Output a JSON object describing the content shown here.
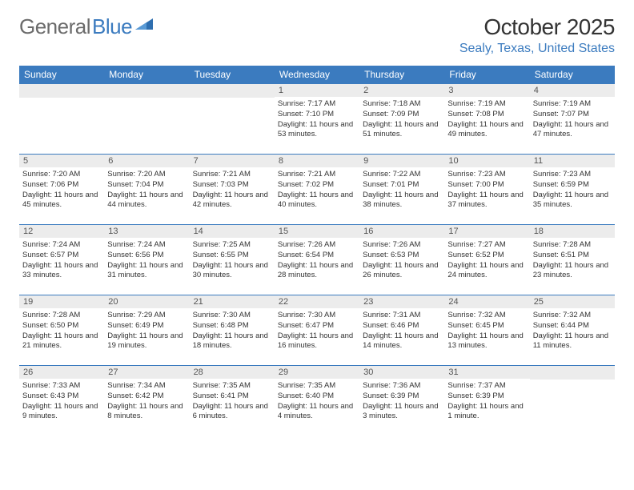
{
  "logo": {
    "text1": "General",
    "text2": "Blue"
  },
  "title": "October 2025",
  "location": "Sealy, Texas, United States",
  "colors": {
    "header_blue": "#3b7bbf",
    "row_gray": "#ececec",
    "text": "#333333",
    "logo_gray": "#6b6b6b"
  },
  "day_names": [
    "Sunday",
    "Monday",
    "Tuesday",
    "Wednesday",
    "Thursday",
    "Friday",
    "Saturday"
  ],
  "weeks": [
    [
      null,
      null,
      null,
      {
        "n": "1",
        "sr": "7:17 AM",
        "ss": "7:10 PM",
        "dl": "11 hours and 53 minutes."
      },
      {
        "n": "2",
        "sr": "7:18 AM",
        "ss": "7:09 PM",
        "dl": "11 hours and 51 minutes."
      },
      {
        "n": "3",
        "sr": "7:19 AM",
        "ss": "7:08 PM",
        "dl": "11 hours and 49 minutes."
      },
      {
        "n": "4",
        "sr": "7:19 AM",
        "ss": "7:07 PM",
        "dl": "11 hours and 47 minutes."
      }
    ],
    [
      {
        "n": "5",
        "sr": "7:20 AM",
        "ss": "7:06 PM",
        "dl": "11 hours and 45 minutes."
      },
      {
        "n": "6",
        "sr": "7:20 AM",
        "ss": "7:04 PM",
        "dl": "11 hours and 44 minutes."
      },
      {
        "n": "7",
        "sr": "7:21 AM",
        "ss": "7:03 PM",
        "dl": "11 hours and 42 minutes."
      },
      {
        "n": "8",
        "sr": "7:21 AM",
        "ss": "7:02 PM",
        "dl": "11 hours and 40 minutes."
      },
      {
        "n": "9",
        "sr": "7:22 AM",
        "ss": "7:01 PM",
        "dl": "11 hours and 38 minutes."
      },
      {
        "n": "10",
        "sr": "7:23 AM",
        "ss": "7:00 PM",
        "dl": "11 hours and 37 minutes."
      },
      {
        "n": "11",
        "sr": "7:23 AM",
        "ss": "6:59 PM",
        "dl": "11 hours and 35 minutes."
      }
    ],
    [
      {
        "n": "12",
        "sr": "7:24 AM",
        "ss": "6:57 PM",
        "dl": "11 hours and 33 minutes."
      },
      {
        "n": "13",
        "sr": "7:24 AM",
        "ss": "6:56 PM",
        "dl": "11 hours and 31 minutes."
      },
      {
        "n": "14",
        "sr": "7:25 AM",
        "ss": "6:55 PM",
        "dl": "11 hours and 30 minutes."
      },
      {
        "n": "15",
        "sr": "7:26 AM",
        "ss": "6:54 PM",
        "dl": "11 hours and 28 minutes."
      },
      {
        "n": "16",
        "sr": "7:26 AM",
        "ss": "6:53 PM",
        "dl": "11 hours and 26 minutes."
      },
      {
        "n": "17",
        "sr": "7:27 AM",
        "ss": "6:52 PM",
        "dl": "11 hours and 24 minutes."
      },
      {
        "n": "18",
        "sr": "7:28 AM",
        "ss": "6:51 PM",
        "dl": "11 hours and 23 minutes."
      }
    ],
    [
      {
        "n": "19",
        "sr": "7:28 AM",
        "ss": "6:50 PM",
        "dl": "11 hours and 21 minutes."
      },
      {
        "n": "20",
        "sr": "7:29 AM",
        "ss": "6:49 PM",
        "dl": "11 hours and 19 minutes."
      },
      {
        "n": "21",
        "sr": "7:30 AM",
        "ss": "6:48 PM",
        "dl": "11 hours and 18 minutes."
      },
      {
        "n": "22",
        "sr": "7:30 AM",
        "ss": "6:47 PM",
        "dl": "11 hours and 16 minutes."
      },
      {
        "n": "23",
        "sr": "7:31 AM",
        "ss": "6:46 PM",
        "dl": "11 hours and 14 minutes."
      },
      {
        "n": "24",
        "sr": "7:32 AM",
        "ss": "6:45 PM",
        "dl": "11 hours and 13 minutes."
      },
      {
        "n": "25",
        "sr": "7:32 AM",
        "ss": "6:44 PM",
        "dl": "11 hours and 11 minutes."
      }
    ],
    [
      {
        "n": "26",
        "sr": "7:33 AM",
        "ss": "6:43 PM",
        "dl": "11 hours and 9 minutes."
      },
      {
        "n": "27",
        "sr": "7:34 AM",
        "ss": "6:42 PM",
        "dl": "11 hours and 8 minutes."
      },
      {
        "n": "28",
        "sr": "7:35 AM",
        "ss": "6:41 PM",
        "dl": "11 hours and 6 minutes."
      },
      {
        "n": "29",
        "sr": "7:35 AM",
        "ss": "6:40 PM",
        "dl": "11 hours and 4 minutes."
      },
      {
        "n": "30",
        "sr": "7:36 AM",
        "ss": "6:39 PM",
        "dl": "11 hours and 3 minutes."
      },
      {
        "n": "31",
        "sr": "7:37 AM",
        "ss": "6:39 PM",
        "dl": "11 hours and 1 minute."
      },
      null
    ]
  ],
  "labels": {
    "sunrise": "Sunrise:",
    "sunset": "Sunset:",
    "daylight": "Daylight:"
  }
}
